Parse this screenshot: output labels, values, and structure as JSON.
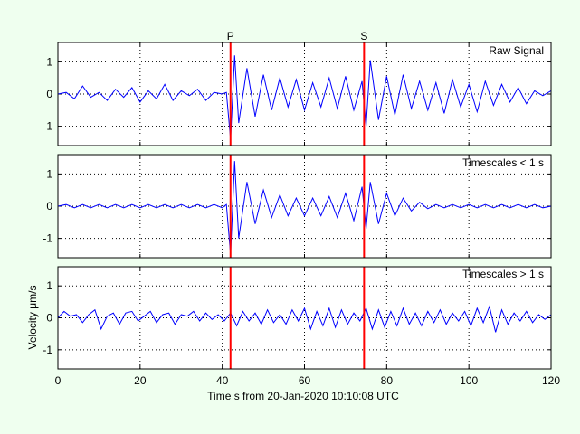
{
  "figure": {
    "background": "#efffef"
  },
  "chart_data": {
    "type": "line",
    "xlabel": "Time s from 20-Jan-2020 10:10:08 UTC",
    "ylabel": "Velocity μm/s",
    "xlim": [
      0,
      120
    ],
    "xticks": [
      0,
      20,
      40,
      60,
      80,
      100,
      120
    ],
    "ylim": [
      -1.6,
      1.6
    ],
    "yticks": [
      -1,
      0,
      1
    ],
    "grid": true,
    "line_color": "#0000ff",
    "marker_color": "#ff0000",
    "phase_markers": [
      {
        "label": "P",
        "time": 42
      },
      {
        "label": "S",
        "time": 74.5
      }
    ],
    "panels": [
      {
        "title": "Raw Signal",
        "series": {
          "x": [
            0,
            2,
            4,
            6,
            8,
            10,
            12,
            14,
            16,
            18,
            20,
            22,
            24,
            26,
            28,
            30,
            32,
            34,
            36,
            38,
            40,
            41,
            42,
            43,
            44,
            46,
            48,
            50,
            52,
            54,
            56,
            58,
            60,
            62,
            64,
            66,
            68,
            70,
            72,
            74,
            75,
            76,
            78,
            80,
            82,
            84,
            86,
            88,
            90,
            92,
            94,
            96,
            98,
            100,
            102,
            104,
            106,
            108,
            110,
            112,
            114,
            116,
            118,
            120
          ],
          "y": [
            0,
            0.05,
            -0.15,
            0.25,
            -0.1,
            0.05,
            -0.2,
            0.15,
            -0.1,
            0.2,
            -0.25,
            0.1,
            -0.15,
            0.3,
            -0.2,
            0.1,
            -0.05,
            0.15,
            -0.2,
            0.05,
            0,
            0.05,
            -1.4,
            1.2,
            -0.9,
            0.8,
            -0.7,
            0.6,
            -0.5,
            0.5,
            -0.4,
            0.45,
            -0.5,
            0.35,
            -0.4,
            0.5,
            -0.45,
            0.55,
            -0.5,
            0.4,
            -1.0,
            1.05,
            -0.8,
            0.55,
            -0.65,
            0.6,
            -0.45,
            0.4,
            -0.5,
            0.35,
            -0.6,
            0.45,
            -0.4,
            0.3,
            -0.55,
            0.4,
            -0.35,
            0.3,
            -0.25,
            0.2,
            -0.3,
            0.1,
            -0.05,
            0.1
          ]
        }
      },
      {
        "title": "Timescales < 1 s",
        "series": {
          "x": [
            0,
            2,
            4,
            6,
            8,
            10,
            12,
            14,
            16,
            18,
            20,
            22,
            24,
            26,
            28,
            30,
            32,
            34,
            36,
            38,
            40,
            41,
            42,
            43,
            44,
            46,
            48,
            50,
            52,
            54,
            56,
            58,
            60,
            62,
            64,
            66,
            68,
            70,
            72,
            74,
            75,
            76,
            78,
            80,
            82,
            84,
            86,
            88,
            90,
            92,
            94,
            96,
            98,
            100,
            102,
            104,
            106,
            108,
            110,
            112,
            114,
            116,
            118,
            120
          ],
          "y": [
            0,
            0.05,
            -0.05,
            0.05,
            -0.05,
            0.05,
            -0.05,
            0.05,
            -0.05,
            0.05,
            -0.05,
            0.05,
            -0.05,
            0.05,
            -0.05,
            0.05,
            -0.05,
            0.05,
            -0.05,
            0.05,
            -0.05,
            0.05,
            -1.5,
            1.4,
            -1.0,
            0.75,
            -0.55,
            0.5,
            -0.35,
            0.35,
            -0.3,
            0.25,
            -0.3,
            0.25,
            -0.3,
            0.3,
            -0.35,
            0.4,
            -0.45,
            0.6,
            -0.7,
            0.75,
            -0.55,
            0.4,
            -0.3,
            0.25,
            -0.15,
            0.12,
            -0.08,
            0.05,
            -0.05,
            0.05,
            -0.05,
            0.05,
            -0.05,
            0.05,
            -0.05,
            0.05,
            -0.05,
            0.05,
            -0.05,
            0.05,
            -0.05,
            0
          ]
        }
      },
      {
        "title": "Timescales > 1 s",
        "series": {
          "x": [
            0,
            1.5,
            3,
            4.5,
            6,
            7.5,
            9,
            10.5,
            12,
            13.5,
            15,
            16.5,
            18,
            19.5,
            21,
            22.5,
            24,
            25.5,
            27,
            28.5,
            30,
            31.5,
            33,
            34.5,
            36,
            37.5,
            39,
            40.5,
            42,
            43.5,
            45,
            46.5,
            48,
            49.5,
            51,
            52.5,
            54,
            55.5,
            57,
            58.5,
            60,
            61.5,
            63,
            64.5,
            66,
            67.5,
            69,
            70.5,
            72,
            73.5,
            75,
            76.5,
            78,
            79.5,
            81,
            82.5,
            84,
            85.5,
            87,
            88.5,
            90,
            91.5,
            93,
            94.5,
            96,
            97.5,
            99,
            100.5,
            102,
            103.5,
            105,
            106.5,
            108,
            109.5,
            111,
            112.5,
            114,
            115.5,
            117,
            118.5,
            120
          ],
          "y": [
            0,
            0.2,
            0.05,
            0.1,
            -0.15,
            0.1,
            0.25,
            -0.35,
            0.05,
            0.15,
            -0.2,
            0.15,
            0.2,
            -0.1,
            0.05,
            0.2,
            -0.15,
            0.1,
            0.15,
            -0.2,
            0.1,
            0.05,
            0.2,
            -0.1,
            0.15,
            -0.05,
            0.1,
            -0.1,
            0.15,
            -0.25,
            0.2,
            -0.1,
            0.15,
            -0.2,
            0.25,
            -0.15,
            0.1,
            -0.2,
            0.25,
            -0.1,
            0.3,
            -0.35,
            0.2,
            -0.25,
            0.3,
            -0.3,
            0.25,
            -0.2,
            0.15,
            -0.1,
            0.3,
            -0.35,
            0.25,
            -0.3,
            0.2,
            -0.25,
            0.3,
            -0.2,
            0.15,
            -0.25,
            0.2,
            -0.15,
            0.25,
            -0.2,
            0.15,
            -0.1,
            0.2,
            -0.25,
            0.3,
            -0.15,
            0.35,
            -0.45,
            0.25,
            -0.2,
            0.15,
            -0.1,
            0.2,
            -0.15,
            0.1,
            -0.05,
            0.1
          ]
        }
      }
    ]
  }
}
